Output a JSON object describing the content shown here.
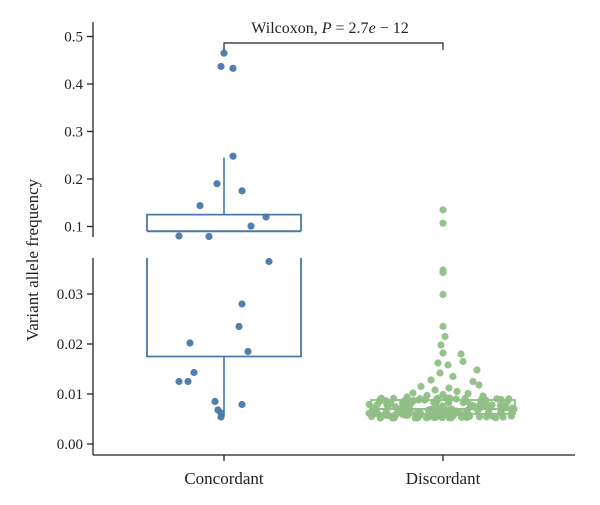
{
  "chart_data": {
    "type": "box_with_jitter",
    "ylabel": "Variant allele frequency",
    "categories": [
      "Concordant",
      "Discordant"
    ],
    "y_axis": {
      "broken": true,
      "lower_range": [
        0,
        0.037
      ],
      "upper_range": [
        0.07,
        0.51
      ],
      "lower_ticks": [
        "0.00",
        "0.01",
        "0.02",
        "0.03"
      ],
      "lower_tick_values": [
        0.0,
        0.01,
        0.02,
        0.03
      ],
      "upper_ticks": [
        "0.1",
        "0.2",
        "0.3",
        "0.4",
        "0.5"
      ],
      "upper_tick_values": [
        0.1,
        0.2,
        0.3,
        0.4,
        0.5
      ]
    },
    "annotation": {
      "prefix": "Wilcoxon, ",
      "p_symbol": "P",
      "p_value": " = 2.7",
      "p_e": "e",
      "p_exp": " − 12"
    },
    "colors": {
      "concordant": "#4a78a8",
      "discordant": "#8fbf87"
    },
    "boxes": [
      {
        "group": "Concordant",
        "whisker_low": 0.0055,
        "q1": 0.0175,
        "median": 0.09,
        "q3": 0.125,
        "whisker_high": 0.245
      },
      {
        "group": "Discordant",
        "whisker_low": 0.005,
        "q1": 0.006,
        "median": 0.007,
        "q3": 0.0088,
        "whisker_high": 0.0095
      }
    ],
    "points": {
      "Concordant": [
        {
          "o": 0.0,
          "v": 0.465
        },
        {
          "o": -0.03,
          "v": 0.437
        },
        {
          "o": 0.09,
          "v": 0.433
        },
        {
          "o": 0.09,
          "v": 0.248
        },
        {
          "o": -0.07,
          "v": 0.19
        },
        {
          "o": 0.18,
          "v": 0.175
        },
        {
          "o": -0.24,
          "v": 0.144
        },
        {
          "o": 0.42,
          "v": 0.12
        },
        {
          "o": 0.27,
          "v": 0.101
        },
        {
          "o": -0.45,
          "v": 0.08
        },
        {
          "o": -0.15,
          "v": 0.079
        },
        {
          "o": 0.45,
          "v": 0.0365
        },
        {
          "o": 0.18,
          "v": 0.028
        },
        {
          "o": 0.15,
          "v": 0.0235
        },
        {
          "o": -0.34,
          "v": 0.0202
        },
        {
          "o": 0.24,
          "v": 0.0185
        },
        {
          "o": -0.3,
          "v": 0.0143
        },
        {
          "o": -0.45,
          "v": 0.0125
        },
        {
          "o": -0.36,
          "v": 0.0125
        },
        {
          "o": -0.09,
          "v": 0.0085
        },
        {
          "o": 0.18,
          "v": 0.0079
        },
        {
          "o": -0.06,
          "v": 0.0068
        },
        {
          "o": -0.03,
          "v": 0.0062
        },
        {
          "o": -0.03,
          "v": 0.0054
        }
      ],
      "Discordant": [
        {
          "o": 0.0,
          "v": 0.135
        },
        {
          "o": 0.0,
          "v": 0.107
        },
        {
          "o": 0.0,
          "v": 0.0348
        },
        {
          "o": 0.0,
          "v": 0.0343
        },
        {
          "o": 0.0,
          "v": 0.0299
        },
        {
          "o": 0.0,
          "v": 0.0235
        },
        {
          "o": 0.02,
          "v": 0.0215
        },
        {
          "o": -0.02,
          "v": 0.0198
        },
        {
          "o": 0.0,
          "v": 0.0182
        },
        {
          "o": 0.18,
          "v": 0.018
        },
        {
          "o": 0.2,
          "v": 0.0165
        },
        {
          "o": -0.05,
          "v": 0.0162
        },
        {
          "o": 0.05,
          "v": 0.0158
        },
        {
          "o": 0.34,
          "v": 0.0148
        },
        {
          "o": -0.03,
          "v": 0.0142
        },
        {
          "o": 0.1,
          "v": 0.0135
        },
        {
          "o": -0.12,
          "v": 0.0128
        },
        {
          "o": 0.3,
          "v": 0.0125
        },
        {
          "o": 0.36,
          "v": 0.0118
        },
        {
          "o": -0.22,
          "v": 0.0115
        },
        {
          "o": 0.06,
          "v": 0.0112
        },
        {
          "o": -0.08,
          "v": 0.0108
        },
        {
          "o": 0.14,
          "v": 0.0105
        },
        {
          "o": -0.3,
          "v": 0.0102
        },
        {
          "o": 0.25,
          "v": 0.0101
        },
        {
          "o": 0.0,
          "v": 0.0099
        },
        {
          "o": -0.16,
          "v": 0.0097
        },
        {
          "o": 0.4,
          "v": 0.0096
        },
        {
          "o": -0.36,
          "v": 0.0094
        },
        {
          "o": 0.03,
          "v": 0.0092
        },
        {
          "o": 0.22,
          "v": 0.0091
        },
        {
          "o": -0.05,
          "v": 0.0089
        }
      ],
      "Discordant_cluster": {
        "count": 160,
        "min": 0.0052,
        "max": 0.0092
      }
    }
  }
}
